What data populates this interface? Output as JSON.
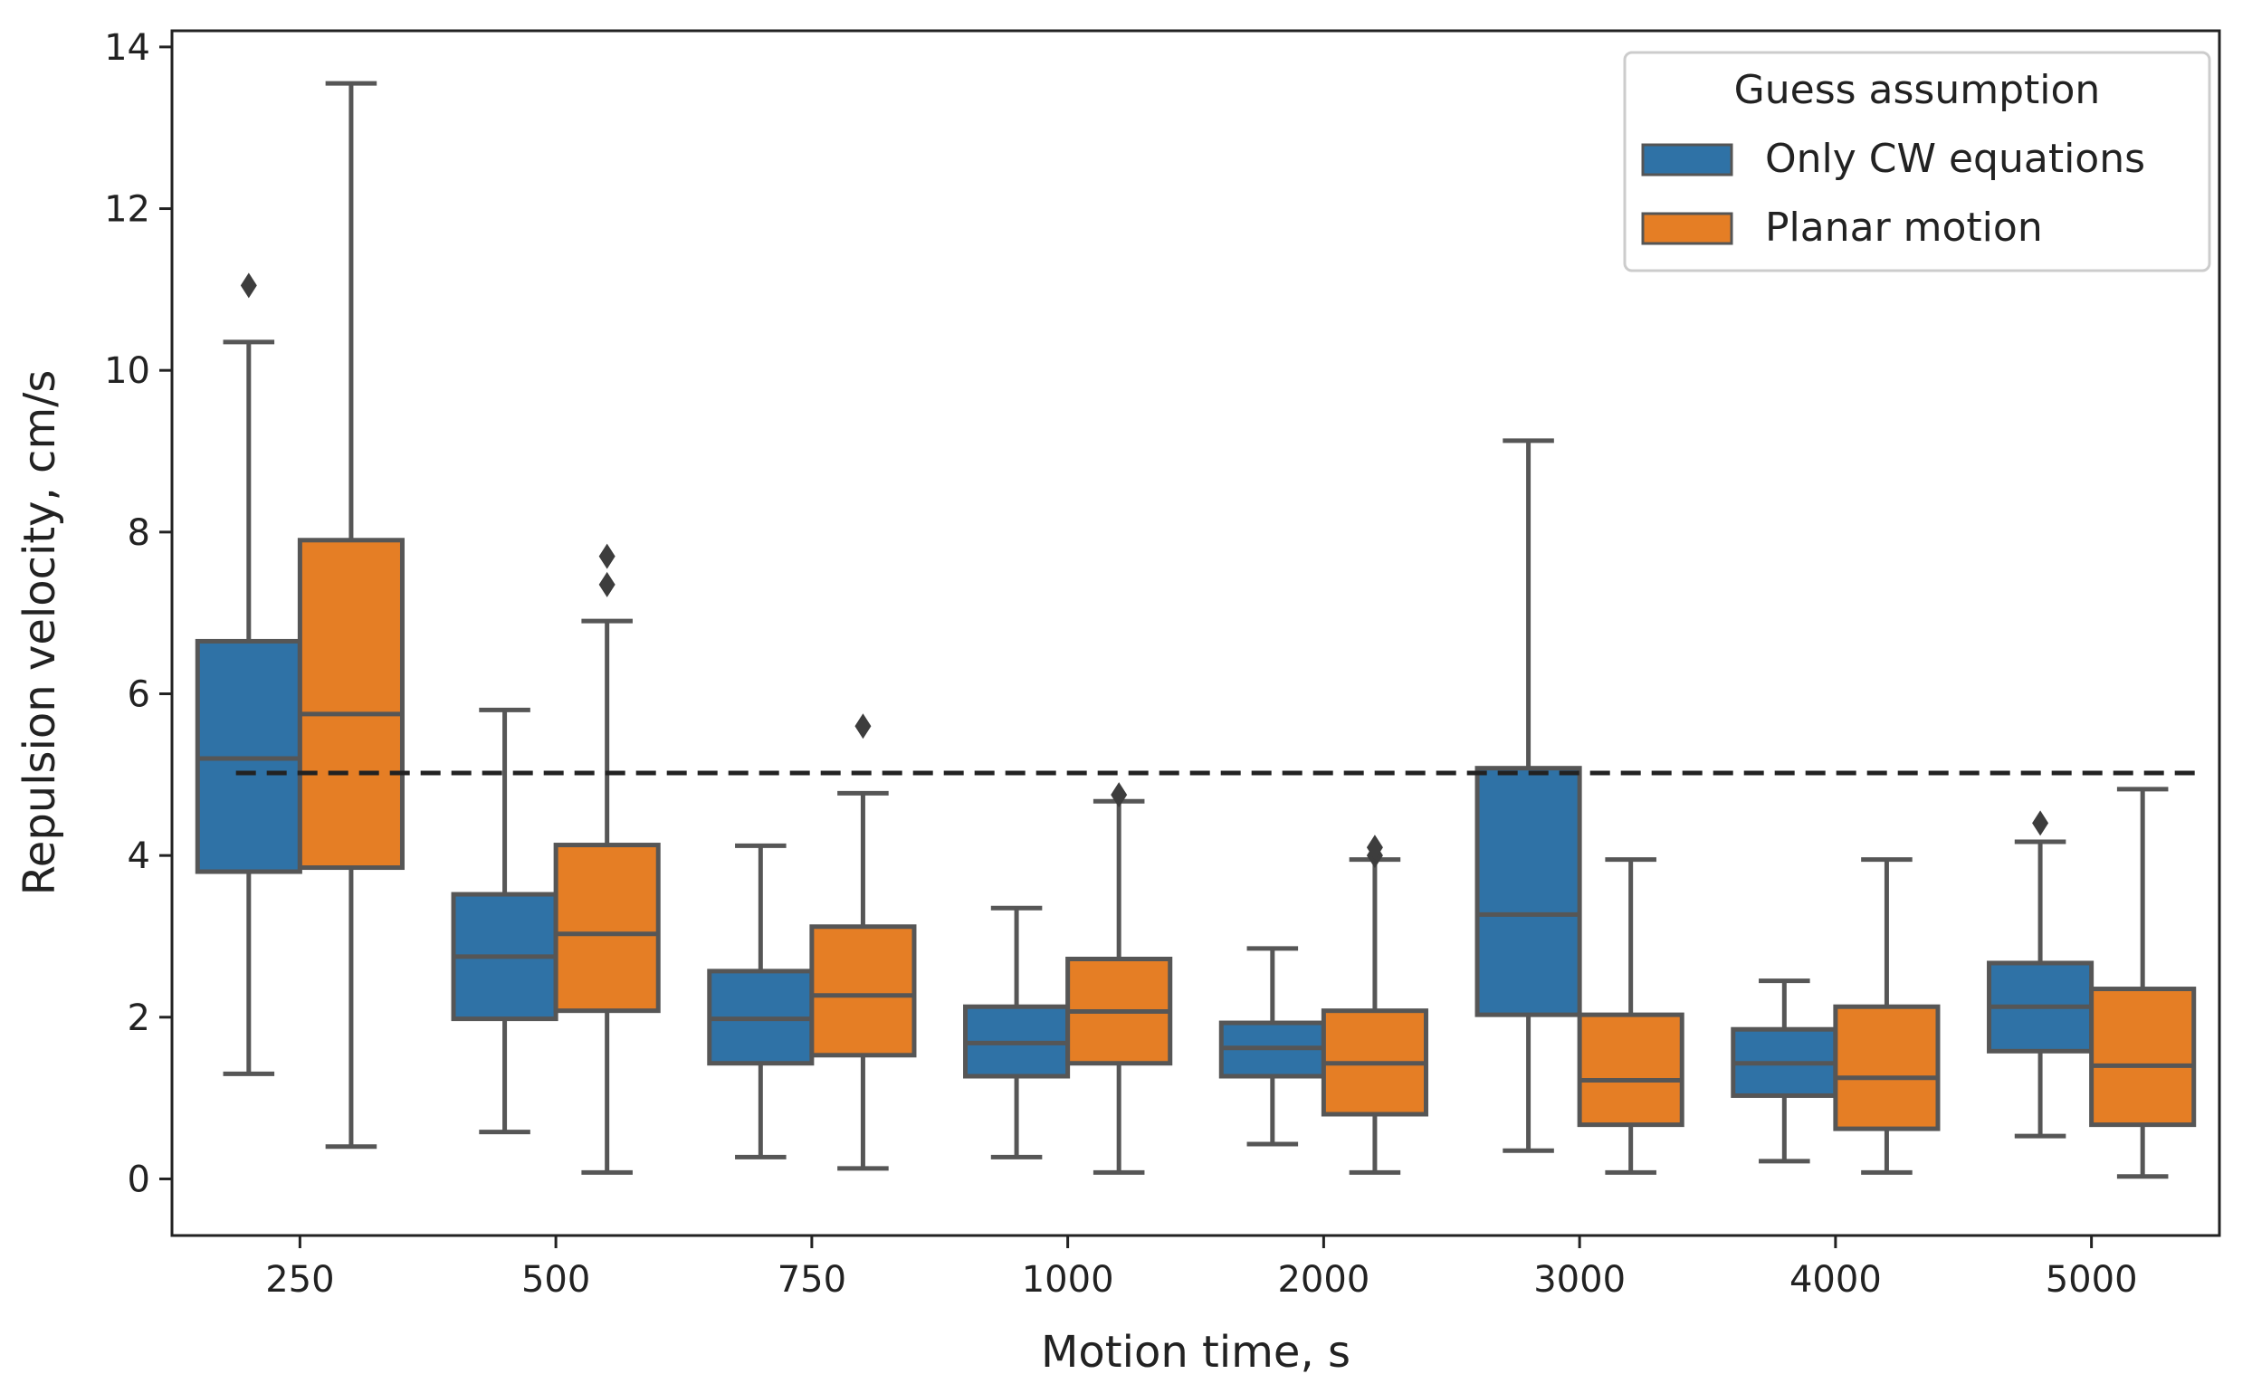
{
  "chart_data": {
    "type": "boxplot",
    "title": "",
    "xlabel": "Motion time, s",
    "ylabel": "Repulsion velocity, cm/s",
    "ylim": [
      -0.7,
      14.2
    ],
    "yticks": [
      0,
      2,
      4,
      6,
      8,
      10,
      12,
      14
    ],
    "categories": [
      "250",
      "500",
      "750",
      "1000",
      "2000",
      "3000",
      "4000",
      "5000"
    ],
    "reference_line": {
      "y": 5.02,
      "style": "dashed",
      "color": "#222222"
    },
    "legend": {
      "title": "Guess assumption",
      "placement": "top-right"
    },
    "series": [
      {
        "name": "Only CW equations",
        "color": "#2f72a6",
        "boxes": [
          {
            "whislo": 1.3,
            "q1": 3.8,
            "med": 5.2,
            "q3": 6.65,
            "whishi": 10.35,
            "fliers": [
              11.05
            ]
          },
          {
            "whislo": 0.58,
            "q1": 1.98,
            "med": 2.75,
            "q3": 3.52,
            "whishi": 5.8,
            "fliers": []
          },
          {
            "whislo": 0.27,
            "q1": 1.43,
            "med": 1.98,
            "q3": 2.57,
            "whishi": 4.12,
            "fliers": []
          },
          {
            "whislo": 0.27,
            "q1": 1.27,
            "med": 1.68,
            "q3": 2.13,
            "whishi": 3.35,
            "fliers": []
          },
          {
            "whislo": 0.43,
            "q1": 1.27,
            "med": 1.62,
            "q3": 1.93,
            "whishi": 2.85,
            "fliers": []
          },
          {
            "whislo": 0.35,
            "q1": 2.03,
            "med": 3.27,
            "q3": 5.08,
            "whishi": 9.13,
            "fliers": []
          },
          {
            "whislo": 0.22,
            "q1": 1.03,
            "med": 1.43,
            "q3": 1.85,
            "whishi": 2.45,
            "fliers": []
          },
          {
            "whislo": 0.53,
            "q1": 1.58,
            "med": 2.13,
            "q3": 2.67,
            "whishi": 4.17,
            "fliers": [
              4.4
            ]
          }
        ]
      },
      {
        "name": "Planar motion",
        "color": "#e57e25",
        "boxes": [
          {
            "whislo": 0.4,
            "q1": 3.85,
            "med": 5.75,
            "q3": 7.9,
            "whishi": 13.55,
            "fliers": []
          },
          {
            "whislo": 0.08,
            "q1": 2.08,
            "med": 3.03,
            "q3": 4.13,
            "whishi": 6.9,
            "fliers": [
              7.35,
              7.7
            ]
          },
          {
            "whislo": 0.13,
            "q1": 1.53,
            "med": 2.27,
            "q3": 3.12,
            "whishi": 4.77,
            "fliers": [
              5.6
            ]
          },
          {
            "whislo": 0.08,
            "q1": 1.43,
            "med": 2.07,
            "q3": 2.72,
            "whishi": 4.67,
            "fliers": [
              4.75
            ]
          },
          {
            "whislo": 0.08,
            "q1": 0.8,
            "med": 1.43,
            "q3": 2.08,
            "whishi": 3.95,
            "fliers": [
              4.0,
              4.1
            ]
          },
          {
            "whislo": 0.08,
            "q1": 0.67,
            "med": 1.22,
            "q3": 2.03,
            "whishi": 3.95,
            "fliers": []
          },
          {
            "whislo": 0.08,
            "q1": 0.62,
            "med": 1.25,
            "q3": 2.13,
            "whishi": 3.95,
            "fliers": []
          },
          {
            "whislo": 0.03,
            "q1": 0.67,
            "med": 1.4,
            "q3": 2.35,
            "whishi": 4.82,
            "fliers": []
          }
        ]
      }
    ]
  }
}
